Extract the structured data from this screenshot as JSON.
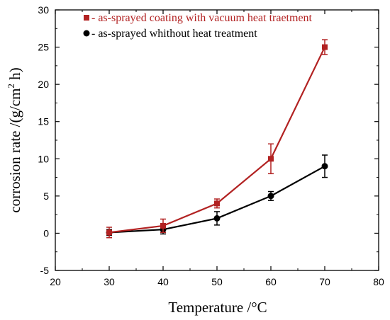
{
  "chart_data": {
    "type": "line",
    "xlabel": "Temperature /°C",
    "ylabel": "corrosion rate /(g/cm",
    "ylabel_sup": "2",
    "ylabel_tail": " h)",
    "xlim": [
      20,
      80
    ],
    "ylim": [
      -5,
      30
    ],
    "x_ticks": [
      "20",
      "30",
      "40",
      "50",
      "60",
      "70",
      "80"
    ],
    "y_ticks": [
      "-5",
      "0",
      "5",
      "10",
      "15",
      "20",
      "25",
      "30"
    ],
    "grid": false,
    "legend_position": "top-left",
    "x": [
      30,
      40,
      50,
      60,
      70
    ],
    "series": [
      {
        "name": "- as-sprayed coating with vacuum heat traetment",
        "values": [
          0.1,
          1.0,
          4.0,
          10.0,
          25.0
        ],
        "error": [
          0.7,
          0.9,
          0.6,
          2.0,
          1.0
        ],
        "color": "#b22222",
        "marker": "square"
      },
      {
        "name": "- as-sprayed whithout heat treatment",
        "values": [
          0.1,
          0.5,
          2.0,
          5.0,
          9.0
        ],
        "error": [
          0.4,
          0.6,
          0.9,
          0.6,
          1.5
        ],
        "color": "#000000",
        "marker": "circle"
      }
    ]
  }
}
